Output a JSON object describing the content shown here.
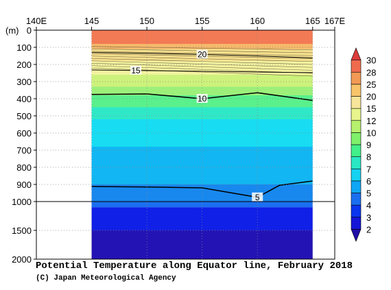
{
  "chart_data": {
    "type": "heatmap",
    "title": "Potential Temperature along Equator line, February 2018",
    "credit": "(C) Japan Meteorological Agency",
    "xlim": [
      140,
      167
    ],
    "x_ticks": [
      {
        "value": 140,
        "label": "140E"
      },
      {
        "value": 145,
        "label": "145"
      },
      {
        "value": 150,
        "label": "150"
      },
      {
        "value": 155,
        "label": "155"
      },
      {
        "value": 160,
        "label": "160"
      },
      {
        "value": 165,
        "label": "165"
      },
      {
        "value": 167,
        "label": "167E"
      }
    ],
    "data_xlim": [
      145,
      165
    ],
    "y_unit": "(m)",
    "y_ticks": [
      0,
      100,
      200,
      300,
      400,
      500,
      600,
      700,
      800,
      900,
      1000,
      1500,
      2000
    ],
    "y_scale_note": "linear 0-1000 m, compressed 1000-2000 m",
    "colorbar": {
      "labels": [
        2,
        3,
        4,
        5,
        6,
        7,
        8,
        9,
        10,
        12,
        15,
        20,
        25,
        28,
        30
      ],
      "colors": [
        "#1f0fa8",
        "#1515d8",
        "#0a36ee",
        "#1a6ff0",
        "#0fa6f5",
        "#15d2f0",
        "#2ae8c4",
        "#42f08a",
        "#7ef06a",
        "#b7f06e",
        "#e7f58c",
        "#f6e59a",
        "#f7c46a",
        "#f29a55",
        "#f06b4e",
        "#dd3b3b"
      ]
    },
    "bands": [
      {
        "top": 0,
        "bottom": 80,
        "color": "#f27a55"
      },
      {
        "top": 80,
        "bottom": 110,
        "color": "#f6b86a"
      },
      {
        "top": 110,
        "bottom": 180,
        "color": "#f5e08e"
      },
      {
        "top": 180,
        "bottom": 260,
        "color": "#f3f3a0"
      },
      {
        "top": 260,
        "bottom": 330,
        "color": "#cdf27c"
      },
      {
        "top": 330,
        "bottom": 380,
        "color": "#9cf07a"
      },
      {
        "top": 380,
        "bottom": 450,
        "color": "#5af08c"
      },
      {
        "top": 450,
        "bottom": 520,
        "color": "#2fe8c8"
      },
      {
        "top": 520,
        "bottom": 680,
        "color": "#18dcf2"
      },
      {
        "top": 680,
        "bottom": 900,
        "color": "#12b6f2"
      },
      {
        "top": 900,
        "bottom": 1000,
        "color": "#1888ee"
      },
      {
        "top": 1000,
        "bottom": 1100,
        "color": "#1a6ff0"
      },
      {
        "top": 1100,
        "bottom": 1500,
        "color": "#1020e6"
      },
      {
        "top": 1500,
        "bottom": 2000,
        "color": "#2413b4"
      }
    ],
    "contours": [
      {
        "value": 20,
        "label": "20",
        "label_x": 155,
        "x": [
          145,
          150,
          155,
          160,
          165
        ],
        "depth": [
          130,
          135,
          142,
          150,
          162
        ],
        "bold": false
      },
      {
        "value": 15,
        "label": "15",
        "label_x": 149,
        "x": [
          145,
          150,
          155,
          160,
          165
        ],
        "depth": [
          232,
          236,
          240,
          244,
          248
        ],
        "bold": false
      },
      {
        "value": 10,
        "label": "10",
        "label_x": 155,
        "x": [
          145,
          150,
          155,
          160,
          165
        ],
        "depth": [
          375,
          372,
          400,
          365,
          410
        ],
        "bold": true
      },
      {
        "value": 5,
        "label": "5",
        "label_x": 160,
        "x": [
          145,
          150,
          155,
          160,
          162,
          165
        ],
        "depth": [
          912,
          915,
          920,
          975,
          905,
          880
        ],
        "bold": true
      }
    ]
  }
}
